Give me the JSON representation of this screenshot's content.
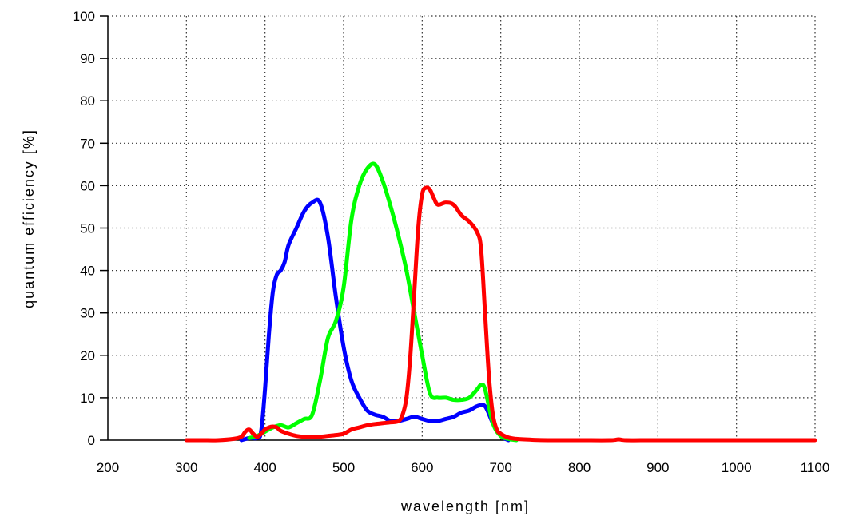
{
  "chart_data": {
    "type": "line",
    "xlabel": "wavelength [nm]",
    "ylabel": "quantum efficiency [%]",
    "xlim": [
      200,
      1100
    ],
    "ylim": [
      0,
      100
    ],
    "xticks": [
      200,
      300,
      400,
      500,
      600,
      700,
      800,
      900,
      1000,
      1100
    ],
    "yticks": [
      0,
      10,
      20,
      30,
      40,
      50,
      60,
      70,
      80,
      90,
      100
    ],
    "grid": true,
    "series": [
      {
        "color": "#0000ff",
        "x": [
          370,
          380,
          390,
          395,
          400,
          405,
          410,
          415,
          420,
          425,
          430,
          440,
          450,
          460,
          470,
          480,
          490,
          500,
          510,
          520,
          530,
          540,
          550,
          560,
          570,
          580,
          590,
          600,
          610,
          620,
          630,
          640,
          650,
          660,
          670,
          680,
          690,
          700,
          710
        ],
        "y": [
          0,
          0.5,
          0.5,
          2,
          12,
          25,
          35,
          39,
          40,
          42,
          46,
          50,
          54,
          56,
          56,
          48,
          34,
          22,
          14,
          10,
          7,
          6,
          5.5,
          4.5,
          4.5,
          5,
          5.5,
          5,
          4.5,
          4.5,
          5,
          5.5,
          6.5,
          7,
          8,
          8,
          4,
          1,
          0
        ]
      },
      {
        "color": "#00ff00",
        "x": [
          380,
          390,
          400,
          410,
          420,
          430,
          440,
          450,
          460,
          470,
          480,
          490,
          500,
          510,
          520,
          530,
          540,
          550,
          560,
          570,
          580,
          590,
          600,
          610,
          620,
          630,
          640,
          650,
          660,
          670,
          675,
          680,
          690,
          700,
          710,
          720
        ],
        "y": [
          0.5,
          1,
          2,
          3,
          3.5,
          3,
          4,
          5,
          6,
          14,
          24,
          28,
          36,
          52,
          60,
          64,
          65,
          61,
          55,
          48,
          40,
          30,
          20,
          11,
          10,
          10,
          9.5,
          9.5,
          10,
          12,
          13,
          12,
          4,
          1,
          0.3,
          0
        ]
      },
      {
        "color": "#ff0000",
        "x": [
          300,
          320,
          340,
          360,
          370,
          375,
          380,
          385,
          390,
          395,
          400,
          405,
          410,
          415,
          420,
          430,
          440,
          450,
          460,
          470,
          480,
          490,
          500,
          510,
          520,
          530,
          540,
          550,
          560,
          570,
          575,
          580,
          585,
          590,
          595,
          600,
          605,
          610,
          615,
          620,
          630,
          640,
          650,
          660,
          670,
          675,
          680,
          685,
          690,
          695,
          700,
          710,
          720,
          740,
          760,
          800,
          840,
          850,
          860,
          900,
          1000,
          1100
        ],
        "y": [
          0,
          0,
          0,
          0.3,
          0.8,
          2,
          2.5,
          1.5,
          0.8,
          1.5,
          2.5,
          3,
          3.2,
          3,
          2.2,
          1.5,
          1,
          0.8,
          0.7,
          0.8,
          1,
          1.2,
          1.5,
          2.5,
          3,
          3.5,
          3.8,
          4,
          4.2,
          4.5,
          6,
          10,
          20,
          35,
          50,
          58,
          59.5,
          59,
          57,
          55.5,
          56,
          55.5,
          53,
          51.5,
          49,
          45,
          30,
          15,
          6,
          2.5,
          1.5,
          0.6,
          0.3,
          0.1,
          0,
          0,
          0,
          0.2,
          0,
          0,
          0,
          0
        ]
      }
    ]
  }
}
